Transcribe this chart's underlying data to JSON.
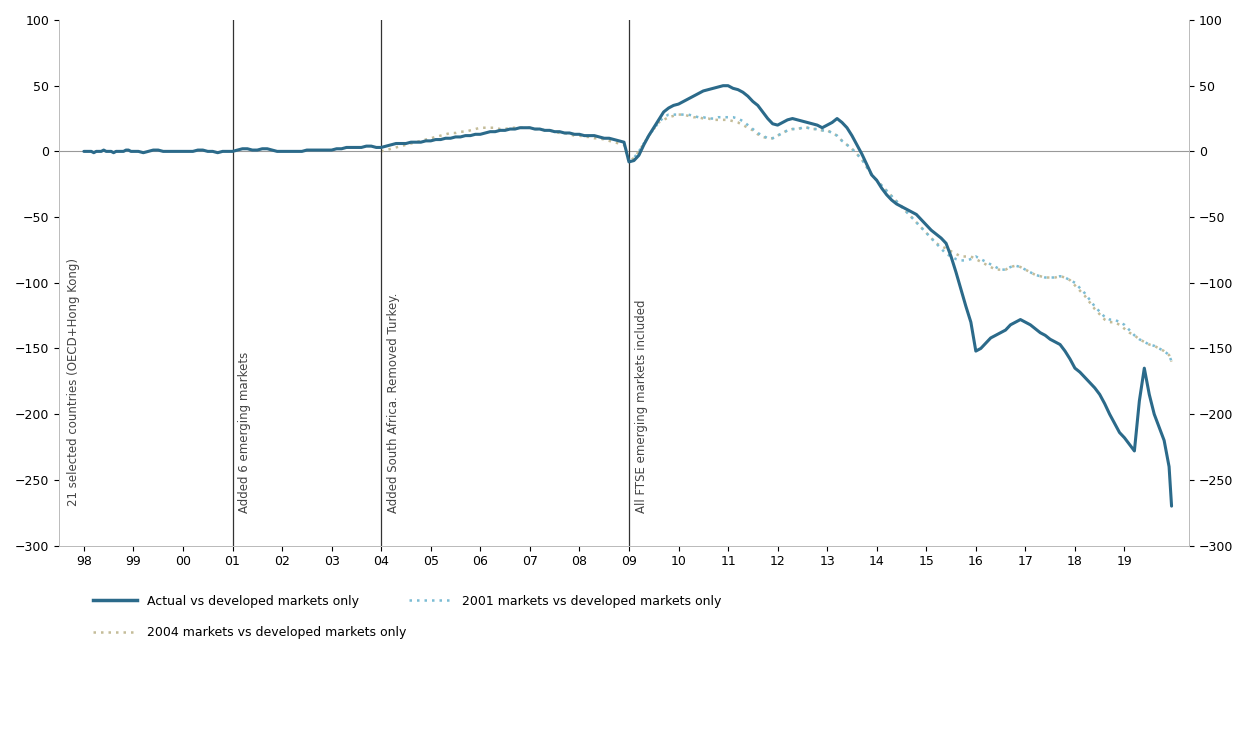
{
  "xlim": [
    1997.5,
    2020.3
  ],
  "ylim": [
    -300,
    100
  ],
  "xtick_positions": [
    1998,
    1999,
    2000,
    2001,
    2002,
    2003,
    2004,
    2005,
    2006,
    2007,
    2008,
    2009,
    2010,
    2011,
    2012,
    2013,
    2014,
    2015,
    2016,
    2017,
    2018,
    2019
  ],
  "xtick_labels": [
    "98",
    "99",
    "00",
    "01",
    "02",
    "03",
    "04",
    "05",
    "06",
    "07",
    "08",
    "09",
    "10",
    "11",
    "12",
    "13",
    "14",
    "15",
    "16",
    "17",
    "18",
    "19"
  ],
  "yticks": [
    -300,
    -250,
    -200,
    -150,
    -100,
    -50,
    0,
    50,
    100
  ],
  "vlines": [
    {
      "x": 2001.0,
      "label": "Added 6 emerging markets"
    },
    {
      "x": 2004.0,
      "label": "Added South Africa. Removed Turkey."
    },
    {
      "x": 2009.0,
      "label": "All FTSE emerging markets included"
    }
  ],
  "annotation_left": "21 selected countries (OECD+Hong Kong)",
  "colors": {
    "actual": "#2B6A8A",
    "markets_2001": "#7BBCD4",
    "markets_2004": "#C4BC98",
    "vline": "#333333",
    "hline": "#999999"
  },
  "legend": [
    {
      "label": "Actual vs developed markets only",
      "color": "#2B6A8A",
      "style": "solid"
    },
    {
      "label": "2001 markets vs developed markets only",
      "color": "#7BBCD4",
      "style": "dotted"
    },
    {
      "label": "2004 markets vs developed markets only",
      "color": "#C4BC98",
      "style": "dotted"
    }
  ],
  "actual_x": [
    1998.0,
    1998.05,
    1998.1,
    1998.15,
    1998.2,
    1998.25,
    1998.3,
    1998.35,
    1998.4,
    1998.45,
    1998.5,
    1998.55,
    1998.6,
    1998.65,
    1998.7,
    1998.75,
    1998.8,
    1998.85,
    1998.9,
    1998.95,
    1999.0,
    1999.1,
    1999.2,
    1999.3,
    1999.4,
    1999.5,
    1999.6,
    1999.7,
    1999.8,
    1999.9,
    2000.0,
    2000.1,
    2000.2,
    2000.3,
    2000.4,
    2000.5,
    2000.6,
    2000.7,
    2000.8,
    2000.9,
    2001.0,
    2001.1,
    2001.2,
    2001.3,
    2001.4,
    2001.5,
    2001.6,
    2001.7,
    2001.8,
    2001.9,
    2002.0,
    2002.1,
    2002.2,
    2002.3,
    2002.4,
    2002.5,
    2002.6,
    2002.7,
    2002.8,
    2002.9,
    2003.0,
    2003.1,
    2003.2,
    2003.3,
    2003.4,
    2003.5,
    2003.6,
    2003.7,
    2003.8,
    2003.9,
    2004.0,
    2004.1,
    2004.2,
    2004.3,
    2004.4,
    2004.5,
    2004.6,
    2004.7,
    2004.8,
    2004.9,
    2005.0,
    2005.1,
    2005.2,
    2005.3,
    2005.4,
    2005.5,
    2005.6,
    2005.7,
    2005.8,
    2005.9,
    2006.0,
    2006.1,
    2006.2,
    2006.3,
    2006.4,
    2006.5,
    2006.6,
    2006.7,
    2006.8,
    2006.9,
    2007.0,
    2007.1,
    2007.2,
    2007.3,
    2007.4,
    2007.5,
    2007.6,
    2007.7,
    2007.8,
    2007.9,
    2008.0,
    2008.1,
    2008.2,
    2008.3,
    2008.4,
    2008.5,
    2008.6,
    2008.7,
    2008.8,
    2008.9,
    2009.0,
    2009.1,
    2009.2,
    2009.3,
    2009.4,
    2009.5,
    2009.6,
    2009.7,
    2009.8,
    2009.9,
    2010.0,
    2010.1,
    2010.2,
    2010.3,
    2010.4,
    2010.5,
    2010.6,
    2010.7,
    2010.8,
    2010.9,
    2011.0,
    2011.1,
    2011.2,
    2011.3,
    2011.4,
    2011.5,
    2011.6,
    2011.7,
    2011.8,
    2011.9,
    2012.0,
    2012.1,
    2012.2,
    2012.3,
    2012.4,
    2012.5,
    2012.6,
    2012.7,
    2012.8,
    2012.9,
    2013.0,
    2013.1,
    2013.2,
    2013.3,
    2013.4,
    2013.5,
    2013.6,
    2013.7,
    2013.8,
    2013.9,
    2014.0,
    2014.1,
    2014.2,
    2014.3,
    2014.4,
    2014.5,
    2014.6,
    2014.7,
    2014.8,
    2014.9,
    2015.0,
    2015.1,
    2015.2,
    2015.3,
    2015.4,
    2015.5,
    2015.6,
    2015.7,
    2015.8,
    2015.9,
    2016.0,
    2016.1,
    2016.2,
    2016.3,
    2016.4,
    2016.5,
    2016.6,
    2016.7,
    2016.8,
    2016.9,
    2017.0,
    2017.1,
    2017.2,
    2017.3,
    2017.4,
    2017.5,
    2017.6,
    2017.7,
    2017.8,
    2017.9,
    2018.0,
    2018.1,
    2018.2,
    2018.3,
    2018.4,
    2018.5,
    2018.6,
    2018.7,
    2018.8,
    2018.9,
    2019.0,
    2019.1,
    2019.2,
    2019.3,
    2019.4,
    2019.5,
    2019.6,
    2019.7,
    2019.8,
    2019.9,
    2019.95
  ],
  "actual_y": [
    0,
    0,
    0,
    0,
    -1,
    0,
    0,
    0,
    1,
    0,
    0,
    0,
    -1,
    0,
    0,
    0,
    0,
    1,
    1,
    0,
    0,
    0,
    -1,
    0,
    1,
    1,
    0,
    0,
    0,
    0,
    0,
    0,
    0,
    1,
    1,
    0,
    0,
    -1,
    0,
    0,
    0,
    1,
    2,
    2,
    1,
    1,
    2,
    2,
    1,
    0,
    0,
    0,
    0,
    0,
    0,
    1,
    1,
    1,
    1,
    1,
    1,
    2,
    2,
    3,
    3,
    3,
    3,
    4,
    4,
    3,
    3,
    4,
    5,
    6,
    6,
    6,
    7,
    7,
    7,
    8,
    8,
    9,
    9,
    10,
    10,
    11,
    11,
    12,
    12,
    13,
    13,
    14,
    15,
    15,
    16,
    16,
    17,
    17,
    18,
    18,
    18,
    17,
    17,
    16,
    16,
    15,
    15,
    14,
    14,
    13,
    13,
    12,
    12,
    12,
    11,
    10,
    10,
    9,
    8,
    7,
    -8,
    -7,
    -3,
    5,
    12,
    18,
    24,
    30,
    33,
    35,
    36,
    38,
    40,
    42,
    44,
    46,
    47,
    48,
    49,
    50,
    50,
    48,
    47,
    45,
    42,
    38,
    35,
    30,
    25,
    21,
    20,
    22,
    24,
    25,
    24,
    23,
    22,
    21,
    20,
    18,
    20,
    22,
    25,
    22,
    18,
    12,
    5,
    -2,
    -10,
    -18,
    -22,
    -28,
    -33,
    -37,
    -40,
    -42,
    -44,
    -46,
    -48,
    -52,
    -56,
    -60,
    -63,
    -66,
    -70,
    -80,
    -92,
    -105,
    -118,
    -130,
    -152,
    -150,
    -146,
    -142,
    -140,
    -138,
    -136,
    -132,
    -130,
    -128,
    -130,
    -132,
    -135,
    -138,
    -140,
    -143,
    -145,
    -147,
    -152,
    -158,
    -165,
    -168,
    -172,
    -176,
    -180,
    -185,
    -192,
    -200,
    -207,
    -214,
    -218,
    -223,
    -228,
    -190,
    -165,
    -185,
    -200,
    -210,
    -220,
    -240,
    -270
  ],
  "m2001_x": [
    2009.0,
    2009.1,
    2009.2,
    2009.3,
    2009.4,
    2009.5,
    2009.6,
    2009.7,
    2009.8,
    2009.9,
    2010.0,
    2010.1,
    2010.2,
    2010.3,
    2010.4,
    2010.5,
    2010.6,
    2010.7,
    2010.8,
    2010.9,
    2011.0,
    2011.1,
    2011.2,
    2011.3,
    2011.4,
    2011.5,
    2011.6,
    2011.7,
    2011.8,
    2011.9,
    2012.0,
    2012.1,
    2012.2,
    2012.3,
    2012.4,
    2012.5,
    2012.6,
    2012.7,
    2012.8,
    2012.9,
    2013.0,
    2013.1,
    2013.2,
    2013.3,
    2013.4,
    2013.5,
    2013.6,
    2013.7,
    2013.8,
    2013.9,
    2014.0,
    2014.1,
    2014.2,
    2014.3,
    2014.4,
    2014.5,
    2014.6,
    2014.7,
    2014.8,
    2014.9,
    2015.0,
    2015.1,
    2015.2,
    2015.3,
    2015.4,
    2015.5,
    2015.6,
    2015.7,
    2015.8,
    2015.9,
    2016.0,
    2016.1,
    2016.2,
    2016.3,
    2016.4,
    2016.5,
    2016.6,
    2016.7,
    2016.8,
    2016.9,
    2017.0,
    2017.1,
    2017.2,
    2017.3,
    2017.4,
    2017.5,
    2017.6,
    2017.7,
    2017.8,
    2017.9,
    2018.0,
    2018.1,
    2018.2,
    2018.3,
    2018.4,
    2018.5,
    2018.6,
    2018.7,
    2018.8,
    2018.9,
    2019.0,
    2019.1,
    2019.2,
    2019.3,
    2019.4,
    2019.5,
    2019.6,
    2019.7,
    2019.8,
    2019.9,
    2019.95
  ],
  "m2001_y": [
    -8,
    -5,
    0,
    6,
    12,
    17,
    22,
    26,
    28,
    28,
    28,
    28,
    28,
    27,
    26,
    26,
    25,
    25,
    26,
    26,
    26,
    26,
    25,
    23,
    20,
    17,
    14,
    12,
    10,
    10,
    12,
    14,
    16,
    17,
    17,
    18,
    18,
    17,
    17,
    16,
    16,
    14,
    12,
    8,
    5,
    2,
    -2,
    -6,
    -12,
    -18,
    -22,
    -26,
    -30,
    -34,
    -38,
    -42,
    -46,
    -50,
    -54,
    -58,
    -62,
    -66,
    -70,
    -74,
    -78,
    -80,
    -82,
    -83,
    -83,
    -82,
    -80,
    -82,
    -84,
    -86,
    -88,
    -90,
    -90,
    -88,
    -87,
    -88,
    -90,
    -92,
    -94,
    -95,
    -96,
    -96,
    -96,
    -95,
    -96,
    -98,
    -100,
    -104,
    -108,
    -113,
    -118,
    -122,
    -126,
    -128,
    -128,
    -130,
    -132,
    -136,
    -140,
    -143,
    -145,
    -147,
    -148,
    -150,
    -152,
    -155,
    -160
  ],
  "m2004_x": [
    2004.0,
    2004.1,
    2004.2,
    2004.3,
    2004.4,
    2004.5,
    2004.6,
    2004.7,
    2004.8,
    2004.9,
    2005.0,
    2005.1,
    2005.2,
    2005.3,
    2005.4,
    2005.5,
    2005.6,
    2005.7,
    2005.8,
    2005.9,
    2006.0,
    2006.1,
    2006.2,
    2006.3,
    2006.4,
    2006.5,
    2006.6,
    2006.7,
    2006.8,
    2006.9,
    2007.0,
    2007.1,
    2007.2,
    2007.3,
    2007.4,
    2007.5,
    2007.6,
    2007.7,
    2007.8,
    2007.9,
    2008.0,
    2008.1,
    2008.2,
    2008.3,
    2008.4,
    2008.5,
    2008.6,
    2008.7,
    2008.8,
    2008.9,
    2009.0,
    2009.1,
    2009.2,
    2009.3,
    2009.4,
    2009.5,
    2009.6,
    2009.7,
    2009.8,
    2009.9,
    2010.0,
    2010.1,
    2010.2,
    2010.3,
    2010.4,
    2010.5,
    2010.6,
    2010.7,
    2010.8,
    2010.9,
    2011.0,
    2011.1,
    2011.2,
    2011.3,
    2011.4,
    2011.5,
    2011.6,
    2011.7,
    2011.8,
    2011.9,
    2012.0,
    2012.1,
    2012.2,
    2012.3,
    2012.4,
    2012.5,
    2012.6,
    2012.7,
    2012.8,
    2012.9,
    2013.0,
    2013.1,
    2013.2,
    2013.3,
    2013.4,
    2013.5,
    2013.6,
    2013.7,
    2013.8,
    2013.9,
    2014.0,
    2014.1,
    2014.2,
    2014.3,
    2014.4,
    2014.5,
    2014.6,
    2014.7,
    2014.8,
    2014.9,
    2015.0,
    2015.1,
    2015.2,
    2015.3,
    2015.4,
    2015.5,
    2015.6,
    2015.7,
    2015.8,
    2015.9,
    2016.0,
    2016.1,
    2016.2,
    2016.3,
    2016.4,
    2016.5,
    2016.6,
    2016.7,
    2016.8,
    2016.9,
    2017.0,
    2017.1,
    2017.2,
    2017.3,
    2017.4,
    2017.5,
    2017.6,
    2017.7,
    2017.8,
    2017.9,
    2018.0,
    2018.1,
    2018.2,
    2018.3,
    2018.4,
    2018.5,
    2018.6,
    2018.7,
    2018.8,
    2018.9,
    2019.0,
    2019.1,
    2019.2,
    2019.3,
    2019.4,
    2019.5,
    2019.6,
    2019.7,
    2019.8,
    2019.9,
    2019.95
  ],
  "m2004_y": [
    0,
    1,
    2,
    3,
    4,
    5,
    6,
    7,
    8,
    9,
    10,
    11,
    12,
    13,
    14,
    14,
    15,
    15,
    16,
    17,
    18,
    18,
    18,
    18,
    17,
    17,
    18,
    18,
    18,
    18,
    18,
    17,
    17,
    16,
    16,
    15,
    14,
    14,
    13,
    12,
    12,
    11,
    11,
    10,
    10,
    9,
    8,
    7,
    6,
    5,
    -8,
    -5,
    0,
    6,
    12,
    17,
    22,
    24,
    26,
    27,
    28,
    28,
    27,
    26,
    26,
    25,
    25,
    24,
    24,
    24,
    24,
    23,
    22,
    20,
    18,
    16,
    13,
    11,
    10,
    10,
    12,
    14,
    16,
    17,
    17,
    18,
    18,
    17,
    17,
    16,
    16,
    14,
    12,
    8,
    5,
    2,
    -2,
    -6,
    -12,
    -18,
    -22,
    -26,
    -30,
    -34,
    -38,
    -42,
    -46,
    -50,
    -54,
    -58,
    -62,
    -66,
    -70,
    -72,
    -74,
    -76,
    -78,
    -80,
    -80,
    -80,
    -82,
    -84,
    -86,
    -88,
    -90,
    -90,
    -90,
    -88,
    -87,
    -88,
    -90,
    -92,
    -94,
    -95,
    -96,
    -96,
    -96,
    -95,
    -96,
    -98,
    -102,
    -106,
    -110,
    -115,
    -120,
    -124,
    -128,
    -130,
    -130,
    -132,
    -135,
    -138,
    -140,
    -143,
    -145,
    -147,
    -148,
    -150,
    -152,
    -155,
    -160
  ]
}
